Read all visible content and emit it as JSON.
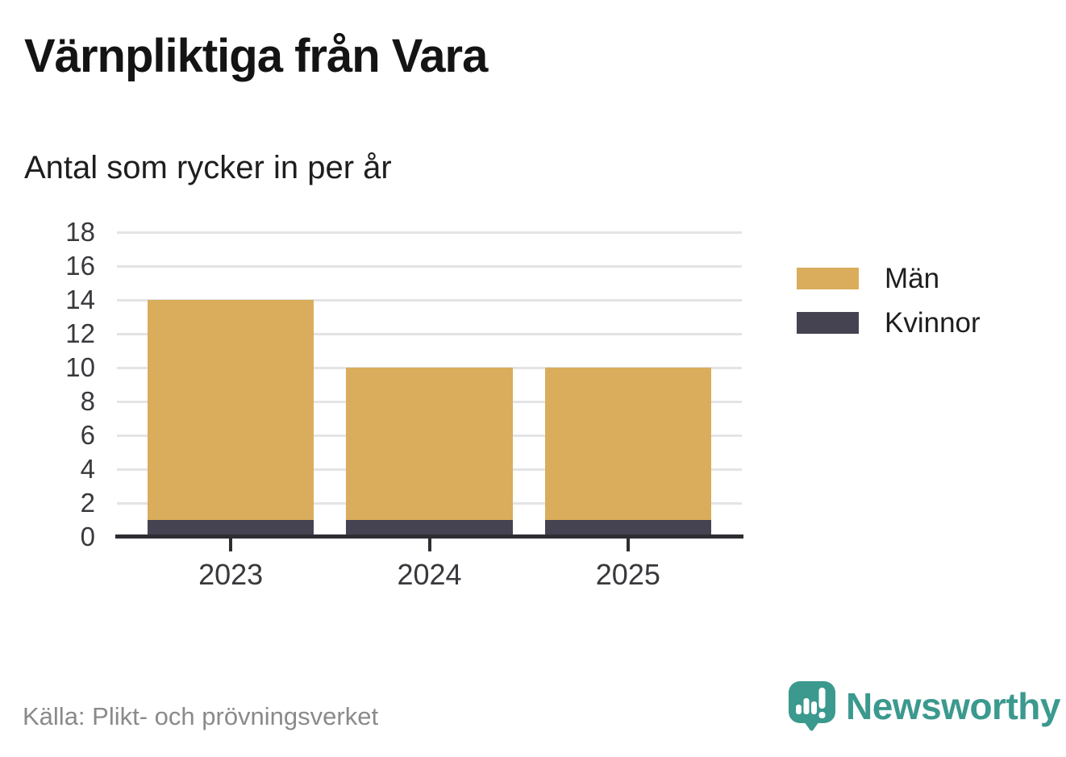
{
  "chart_data": {
    "type": "bar",
    "stacked": true,
    "title": "Värnpliktiga från Vara",
    "subtitle": "Antal som rycker in per år",
    "categories": [
      "2023",
      "2024",
      "2025"
    ],
    "series": [
      {
        "name": "Män",
        "color": "#d9ad5b",
        "values": [
          13,
          9,
          9
        ]
      },
      {
        "name": "Kvinnor",
        "color": "#454351",
        "values": [
          1,
          1,
          1
        ]
      }
    ],
    "stack_bottom_series": "Kvinnor",
    "totals": [
      14,
      10,
      10
    ],
    "xlabel": "",
    "ylabel": "",
    "ylim": [
      0,
      18
    ],
    "ytick_step": 2,
    "yticks": [
      0,
      2,
      4,
      6,
      8,
      10,
      12,
      14,
      16,
      18
    ],
    "grid": true,
    "legend_position": "right"
  },
  "legend": {
    "items": [
      {
        "label": "Män",
        "color": "#d9ad5b"
      },
      {
        "label": "Kvinnor",
        "color": "#454351"
      }
    ]
  },
  "footer": {
    "source": "Källa: Plikt- och prövningsverket",
    "brand": "Newsworthy"
  },
  "colors": {
    "men_gold": "#d9ad5b",
    "women_dark": "#454351",
    "axis": "#2e2d33",
    "gridline": "#e4e4e6",
    "tick_text": "#39393d",
    "source_text": "#8a8a8a",
    "brand_teal": "#3b998e"
  }
}
